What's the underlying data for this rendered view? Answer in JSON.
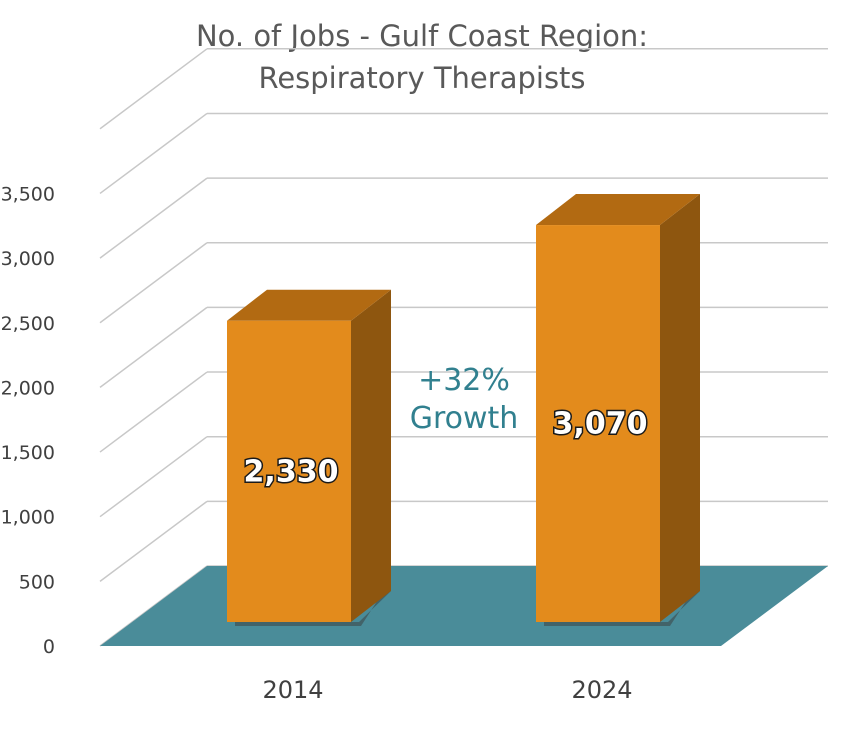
{
  "chart_data": {
    "type": "bar",
    "title_lines": [
      "No. of Jobs - Gulf Coast Region:",
      "Respiratory Therapists"
    ],
    "categories": [
      "2014",
      "2024"
    ],
    "series": [
      {
        "values": [
          2330,
          3070
        ]
      }
    ],
    "data_labels": [
      "2,330",
      "3,070"
    ],
    "ylim": [
      0,
      3500
    ],
    "y_ticks": [
      {
        "value": 0,
        "label": "0"
      },
      {
        "value": 500,
        "label": "500"
      },
      {
        "value": 1000,
        "label": "1,000"
      },
      {
        "value": 1500,
        "label": "1,500"
      },
      {
        "value": 2000,
        "label": "2,000"
      },
      {
        "value": 2500,
        "label": "2,500"
      },
      {
        "value": 3000,
        "label": "3,000"
      },
      {
        "value": 3500,
        "label": "3,500"
      }
    ],
    "annotation_lines": [
      "+32%",
      "Growth"
    ],
    "grid": true,
    "style": "3d",
    "colors": {
      "bar_front": "#e38b1c",
      "bar_top": "#b26a12",
      "bar_side": "#8e560f",
      "floor": "#4a8c99",
      "grid": "#c8c8c8",
      "annotation": "#31808f"
    }
  }
}
